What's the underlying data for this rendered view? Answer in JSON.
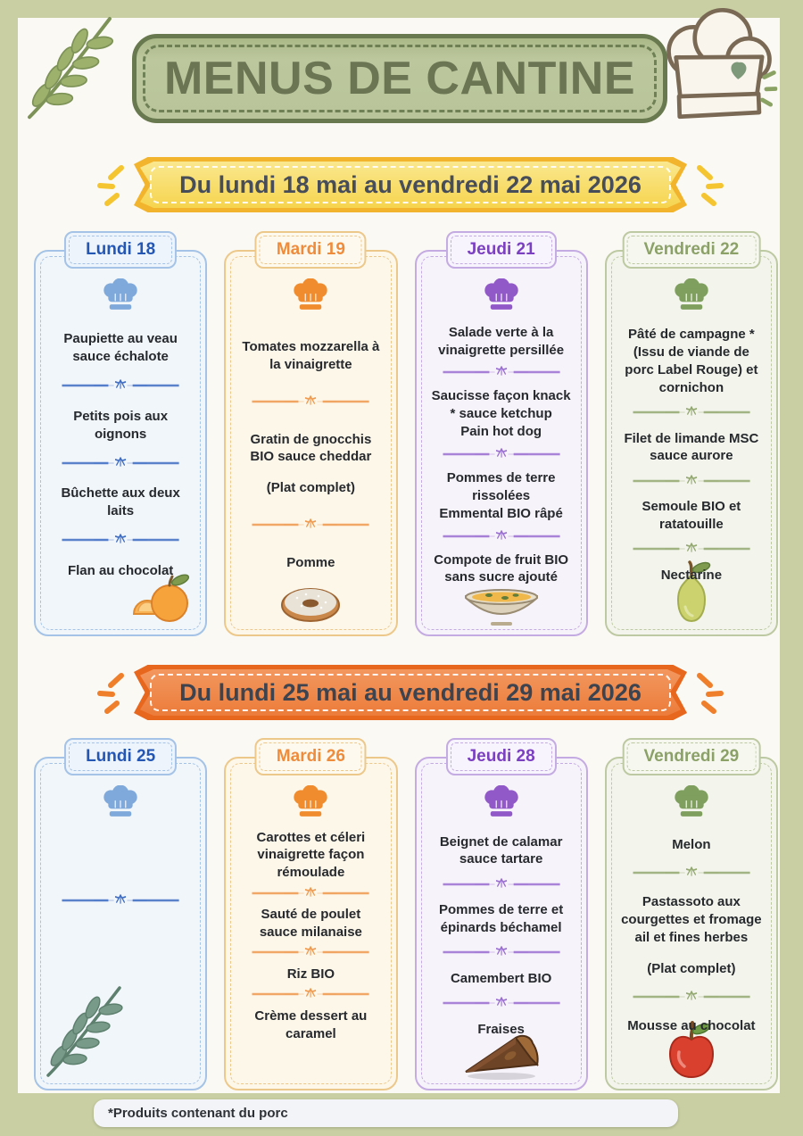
{
  "page": {
    "title": "MENUS DE CANTINE",
    "footnote": "*Produits contenant du porc"
  },
  "colors": {
    "frame": "#c9cfa2",
    "paper": "#fbf9f3",
    "title_banner_fill": "#b9c49a",
    "title_text": "#6b7553",
    "week1_banner": "#f2b42c",
    "week2_banner": "#e8671f",
    "accent_blue": "#2456b4",
    "accent_orange": "#ef8c3c",
    "accent_purple": "#7b3fc1",
    "accent_green": "#8ba168"
  },
  "icons": {
    "header_left": "olive-branch-icon",
    "header_right": "chef-hat-logo with heart-icon",
    "banner_sides": "sparkle-strokes-icon",
    "day_header": "chef-hat-icon",
    "course_separator": "divider-ornament"
  },
  "weeks": [
    {
      "banner": "Du lundi 18 mai au vendredi 22 mai 2026",
      "banner_color": "yellow",
      "days": [
        {
          "label": "Lundi 18",
          "theme": "blue",
          "courses": [
            [
              "Paupiette au veau sauce échalote"
            ],
            [
              "Petits pois aux oignons"
            ],
            [
              "Bûchette aux deux laits"
            ],
            [
              "Flan au chocolat"
            ]
          ],
          "illustration": "orange-fruit",
          "illustration_pos": "br"
        },
        {
          "label": "Mardi 19",
          "theme": "orange",
          "courses": [
            [
              "Tomates mozzarella à la vinaigrette"
            ],
            [
              "Gratin de gnocchis BIO sauce cheddar",
              "",
              "(Plat complet)"
            ],
            [
              "Pomme"
            ]
          ],
          "illustration": "donut",
          "illustration_pos": "bc"
        },
        {
          "label": "Jeudi 21",
          "theme": "purple",
          "courses": [
            [
              "Salade verte à la vinaigrette persillée"
            ],
            [
              "Saucisse façon knack * sauce ketchup",
              "Pain hot dog"
            ],
            [
              "Pommes de terre rissolées",
              "Emmental BIO râpé"
            ],
            [
              "Compote de fruit BIO sans sucre ajouté"
            ]
          ],
          "illustration": "stew-bowl",
          "illustration_pos": "bc"
        },
        {
          "label": "Vendredi 22",
          "theme": "green",
          "courses": [
            [
              "Pâté de campagne * (Issu de viande de porc Label Rouge) et cornichon"
            ],
            [
              "Filet de limande MSC sauce aurore"
            ],
            [
              "Semoule BIO et ratatouille"
            ],
            [
              "Nectarine"
            ]
          ],
          "illustration": "pear",
          "illustration_pos": "bc"
        }
      ]
    },
    {
      "banner": "Du lundi 25 mai au vendredi 29 mai 2026",
      "banner_color": "orange",
      "days": [
        {
          "label": "Lundi 25",
          "theme": "blue",
          "courses": [],
          "illustration": "leaf-branch",
          "illustration_pos": "bl"
        },
        {
          "label": "Mardi 26",
          "theme": "orange",
          "courses": [
            [
              "Carottes et céleri vinaigrette façon rémoulade"
            ],
            [
              "Sauté de poulet sauce milanaise"
            ],
            [
              "Riz BIO"
            ],
            [
              "Crème dessert au caramel"
            ]
          ],
          "illustration": null,
          "illustration_pos": null
        },
        {
          "label": "Jeudi 28",
          "theme": "purple",
          "courses": [
            [
              "Beignet de calamar sauce tartare"
            ],
            [
              "Pommes de terre et épinards béchamel"
            ],
            [
              "Camembert BIO"
            ],
            [
              "Fraises"
            ]
          ],
          "illustration": "chocolate-pie",
          "illustration_pos": "bc"
        },
        {
          "label": "Vendredi 29",
          "theme": "green",
          "courses": [
            [
              "Melon"
            ],
            [
              "Pastassoto aux courgettes et fromage ail et fines herbes",
              "",
              "(Plat complet)"
            ],
            [
              "Mousse au chocolat"
            ]
          ],
          "illustration": "apple",
          "illustration_pos": "bc"
        }
      ]
    }
  ]
}
